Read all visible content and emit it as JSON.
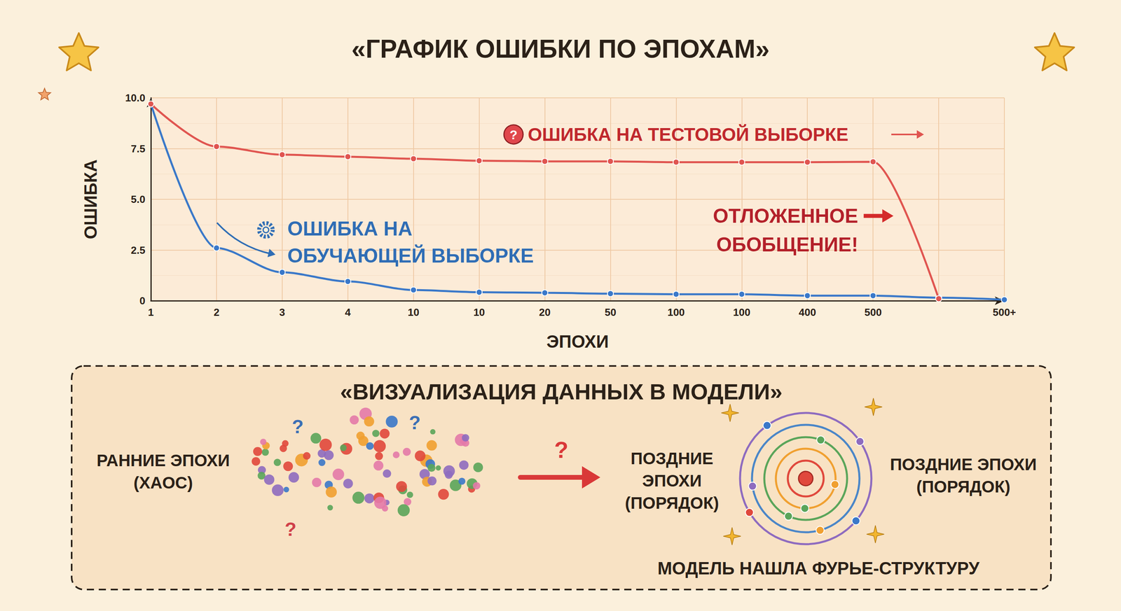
{
  "chart_data": {
    "type": "line",
    "title": "«ГРАФИК ОШИБКИ ПО ЭПОХАМ»",
    "x_label": "ЭПОХИ",
    "y_label": "ОШИБКА",
    "categories": [
      "1",
      "2",
      "3",
      "4",
      "10",
      "10",
      "20",
      "50",
      "100",
      "100",
      "400",
      "500",
      null,
      "500+"
    ],
    "series": [
      {
        "name": "ОШИБКА НА ОБУЧАЮЩЕЙ ВЫБОРКЕ",
        "color": "#3a78c9",
        "values": [
          9.7,
          2.6,
          1.4,
          0.95,
          0.53,
          0.42,
          0.39,
          0.35,
          0.32,
          0.32,
          0.25,
          0.25,
          0.15,
          0.05
        ]
      },
      {
        "name": "ОШИБКА НА ТЕСТОВОЙ ВЫБОРКЕ",
        "color": "#e05550",
        "values": [
          9.7,
          7.6,
          7.2,
          7.1,
          7.0,
          6.9,
          6.87,
          6.87,
          6.83,
          6.83,
          6.83,
          6.85,
          0.1,
          null
        ]
      }
    ],
    "ylim": [
      0,
      10
    ],
    "yticks": [
      0,
      2.5,
      {
        "value": 5,
        "label": "5.0"
      },
      7.5,
      {
        "value": 10,
        "label": "10.0"
      }
    ],
    "grid": true,
    "marker": "circle",
    "annotations": [
      "ОТЛОЖЕННОЕ ОБОБЩЕНИЕ!",
      "?"
    ]
  },
  "diagram": {
    "title": "«ВИЗУАЛИЗАЦИЯ ДАННЫХ В МОДЕЛИ»",
    "left_label": "РАННИЕ ЭПОХИ (ХАОС)",
    "middle_label": "ПОЗДНИЕ ЭПОХИ (ПОРЯДОК)",
    "right_label": "ПОЗДНИЕ ЭПОХИ (ПОРЯДОК)",
    "question_mark": "?",
    "caption": "МОДЕЛЬ НАШЛА ФУРЬЕ-СТРУКТУРУ"
  }
}
